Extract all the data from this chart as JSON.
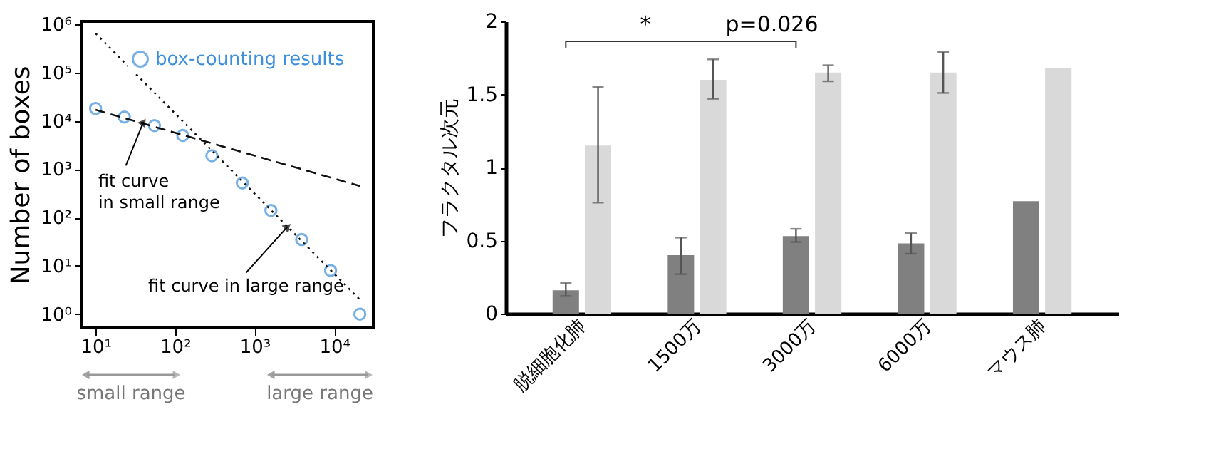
{
  "chart_data": [
    {
      "type": "scatter",
      "ylabel": "Number of boxes",
      "log": "xy",
      "legend": "top right",
      "grid": false,
      "marker": "circle",
      "xlim": [
        6.6,
        31000
      ],
      "ylim": [
        0.52,
        1150000
      ],
      "xticks": [
        {
          "value": 10,
          "label": "10¹"
        },
        {
          "value": 100,
          "label": "10²"
        },
        {
          "value": 1000,
          "label": "10³"
        },
        {
          "value": 10000,
          "label": "10⁴"
        }
      ],
      "yticks": [
        {
          "value": 1,
          "label": "10⁰"
        },
        {
          "value": 10,
          "label": "10¹"
        },
        {
          "value": 100,
          "label": "10²"
        },
        {
          "value": 1000,
          "label": "10³"
        },
        {
          "value": 10000,
          "label": "10⁴"
        },
        {
          "value": 100000,
          "label": "10⁵"
        },
        {
          "value": 1000000,
          "label": "10⁶"
        }
      ],
      "series": [
        {
          "name": "box-counting results",
          "color": "#3d8fd9",
          "x": [
            10,
            23,
            55,
            125,
            290,
            700,
            1600,
            3900,
            9000,
            21000
          ],
          "values": [
            18000,
            12000,
            8000,
            5000,
            1900,
            520,
            140,
            35,
            8,
            1
          ]
        },
        {
          "type": "line",
          "marker": "none",
          "line_style": "dashed",
          "color": "#111111",
          "x": [
            10,
            21000
          ],
          "values": [
            17000,
            450
          ]
        },
        {
          "type": "line",
          "marker": "none",
          "line_style": "dotted",
          "color": "#111111",
          "x": [
            10,
            21000
          ],
          "values": [
            650000,
            2
          ]
        }
      ],
      "annotations": [
        {
          "text": "fit curve\nin small range",
          "x": 40,
          "y": 9500
        },
        {
          "text": "fit curve in large range",
          "x": 2600,
          "y": 65
        },
        "small range",
        "large range"
      ]
    },
    {
      "type": "bar",
      "ylabel": "フラクタル次元",
      "legend": false,
      "grid": false,
      "categories": [
        "脱細胞化肺",
        "1500万",
        "3000万",
        "6000万",
        "マウス肺"
      ],
      "ylim": [
        0,
        2
      ],
      "yticks": [
        0,
        0.5,
        1,
        1.5,
        2
      ],
      "series": [
        {
          "color": "#808080",
          "values": [
            0.16,
            0.4,
            0.53,
            0.48,
            0.77
          ],
          "errors": [
            [
              0.12,
              0.21
            ],
            [
              0.27,
              0.52
            ],
            [
              0.49,
              0.58
            ],
            [
              0.41,
              0.55
            ],
            null
          ]
        },
        {
          "color": "#d9d9d9",
          "values": [
            1.15,
            1.6,
            1.65,
            1.65,
            1.68
          ],
          "errors": [
            [
              0.76,
              1.55
            ],
            [
              1.47,
              1.74
            ],
            [
              1.59,
              1.7
            ],
            [
              1.51,
              1.79
            ],
            null
          ]
        }
      ],
      "annotations": [
        "*",
        "p=0.026"
      ]
    }
  ]
}
